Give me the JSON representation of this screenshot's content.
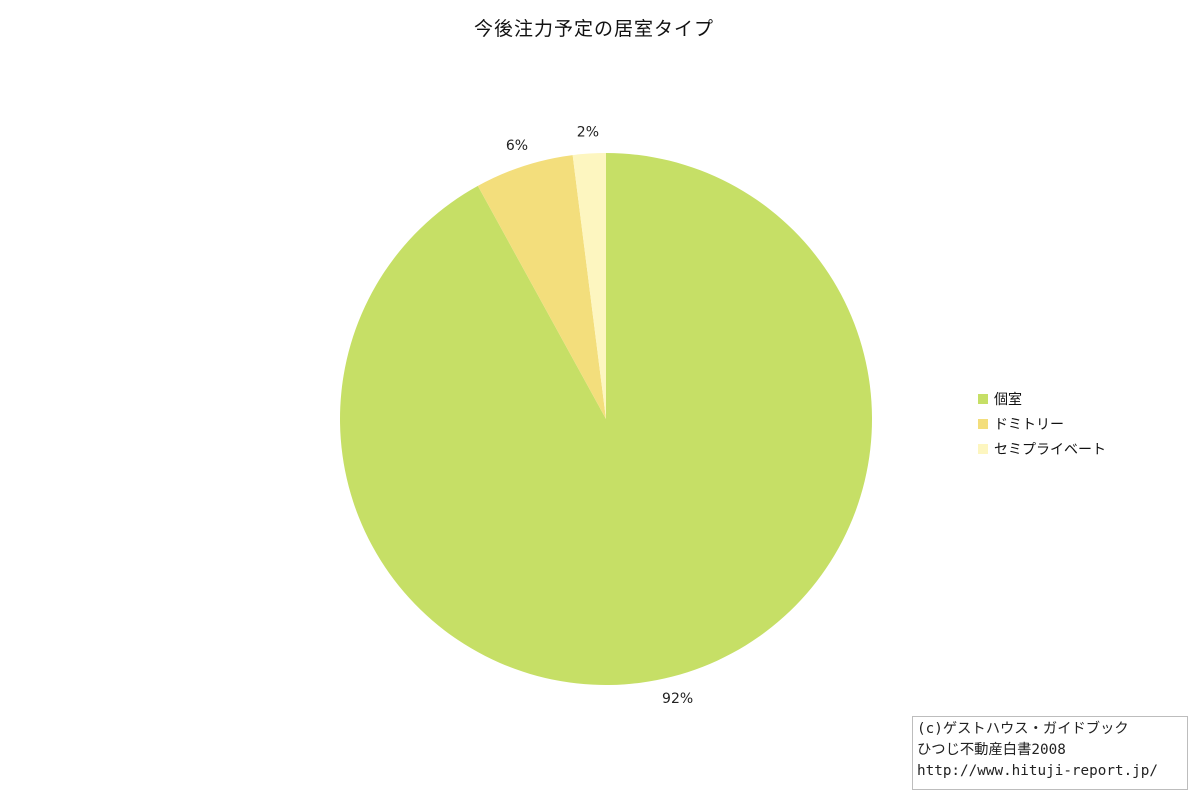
{
  "chart_data": {
    "type": "pie",
    "title": "今後注力予定の居室タイプ",
    "slices": [
      {
        "label": "個室",
        "value": 92,
        "display": "92%",
        "color": "#c6df66"
      },
      {
        "label": "ドミトリー",
        "value": 6,
        "display": "6%",
        "color": "#f3de7c"
      },
      {
        "label": "セミプライベート",
        "value": 2,
        "display": "2%",
        "color": "#fdf6c0"
      }
    ],
    "legend_position": "right"
  },
  "credit": {
    "line1": "(c)ゲストハウス・ガイドブック",
    "line2": "ひつじ不動産白書2008",
    "line3": "http://www.hituji-report.jp/"
  }
}
